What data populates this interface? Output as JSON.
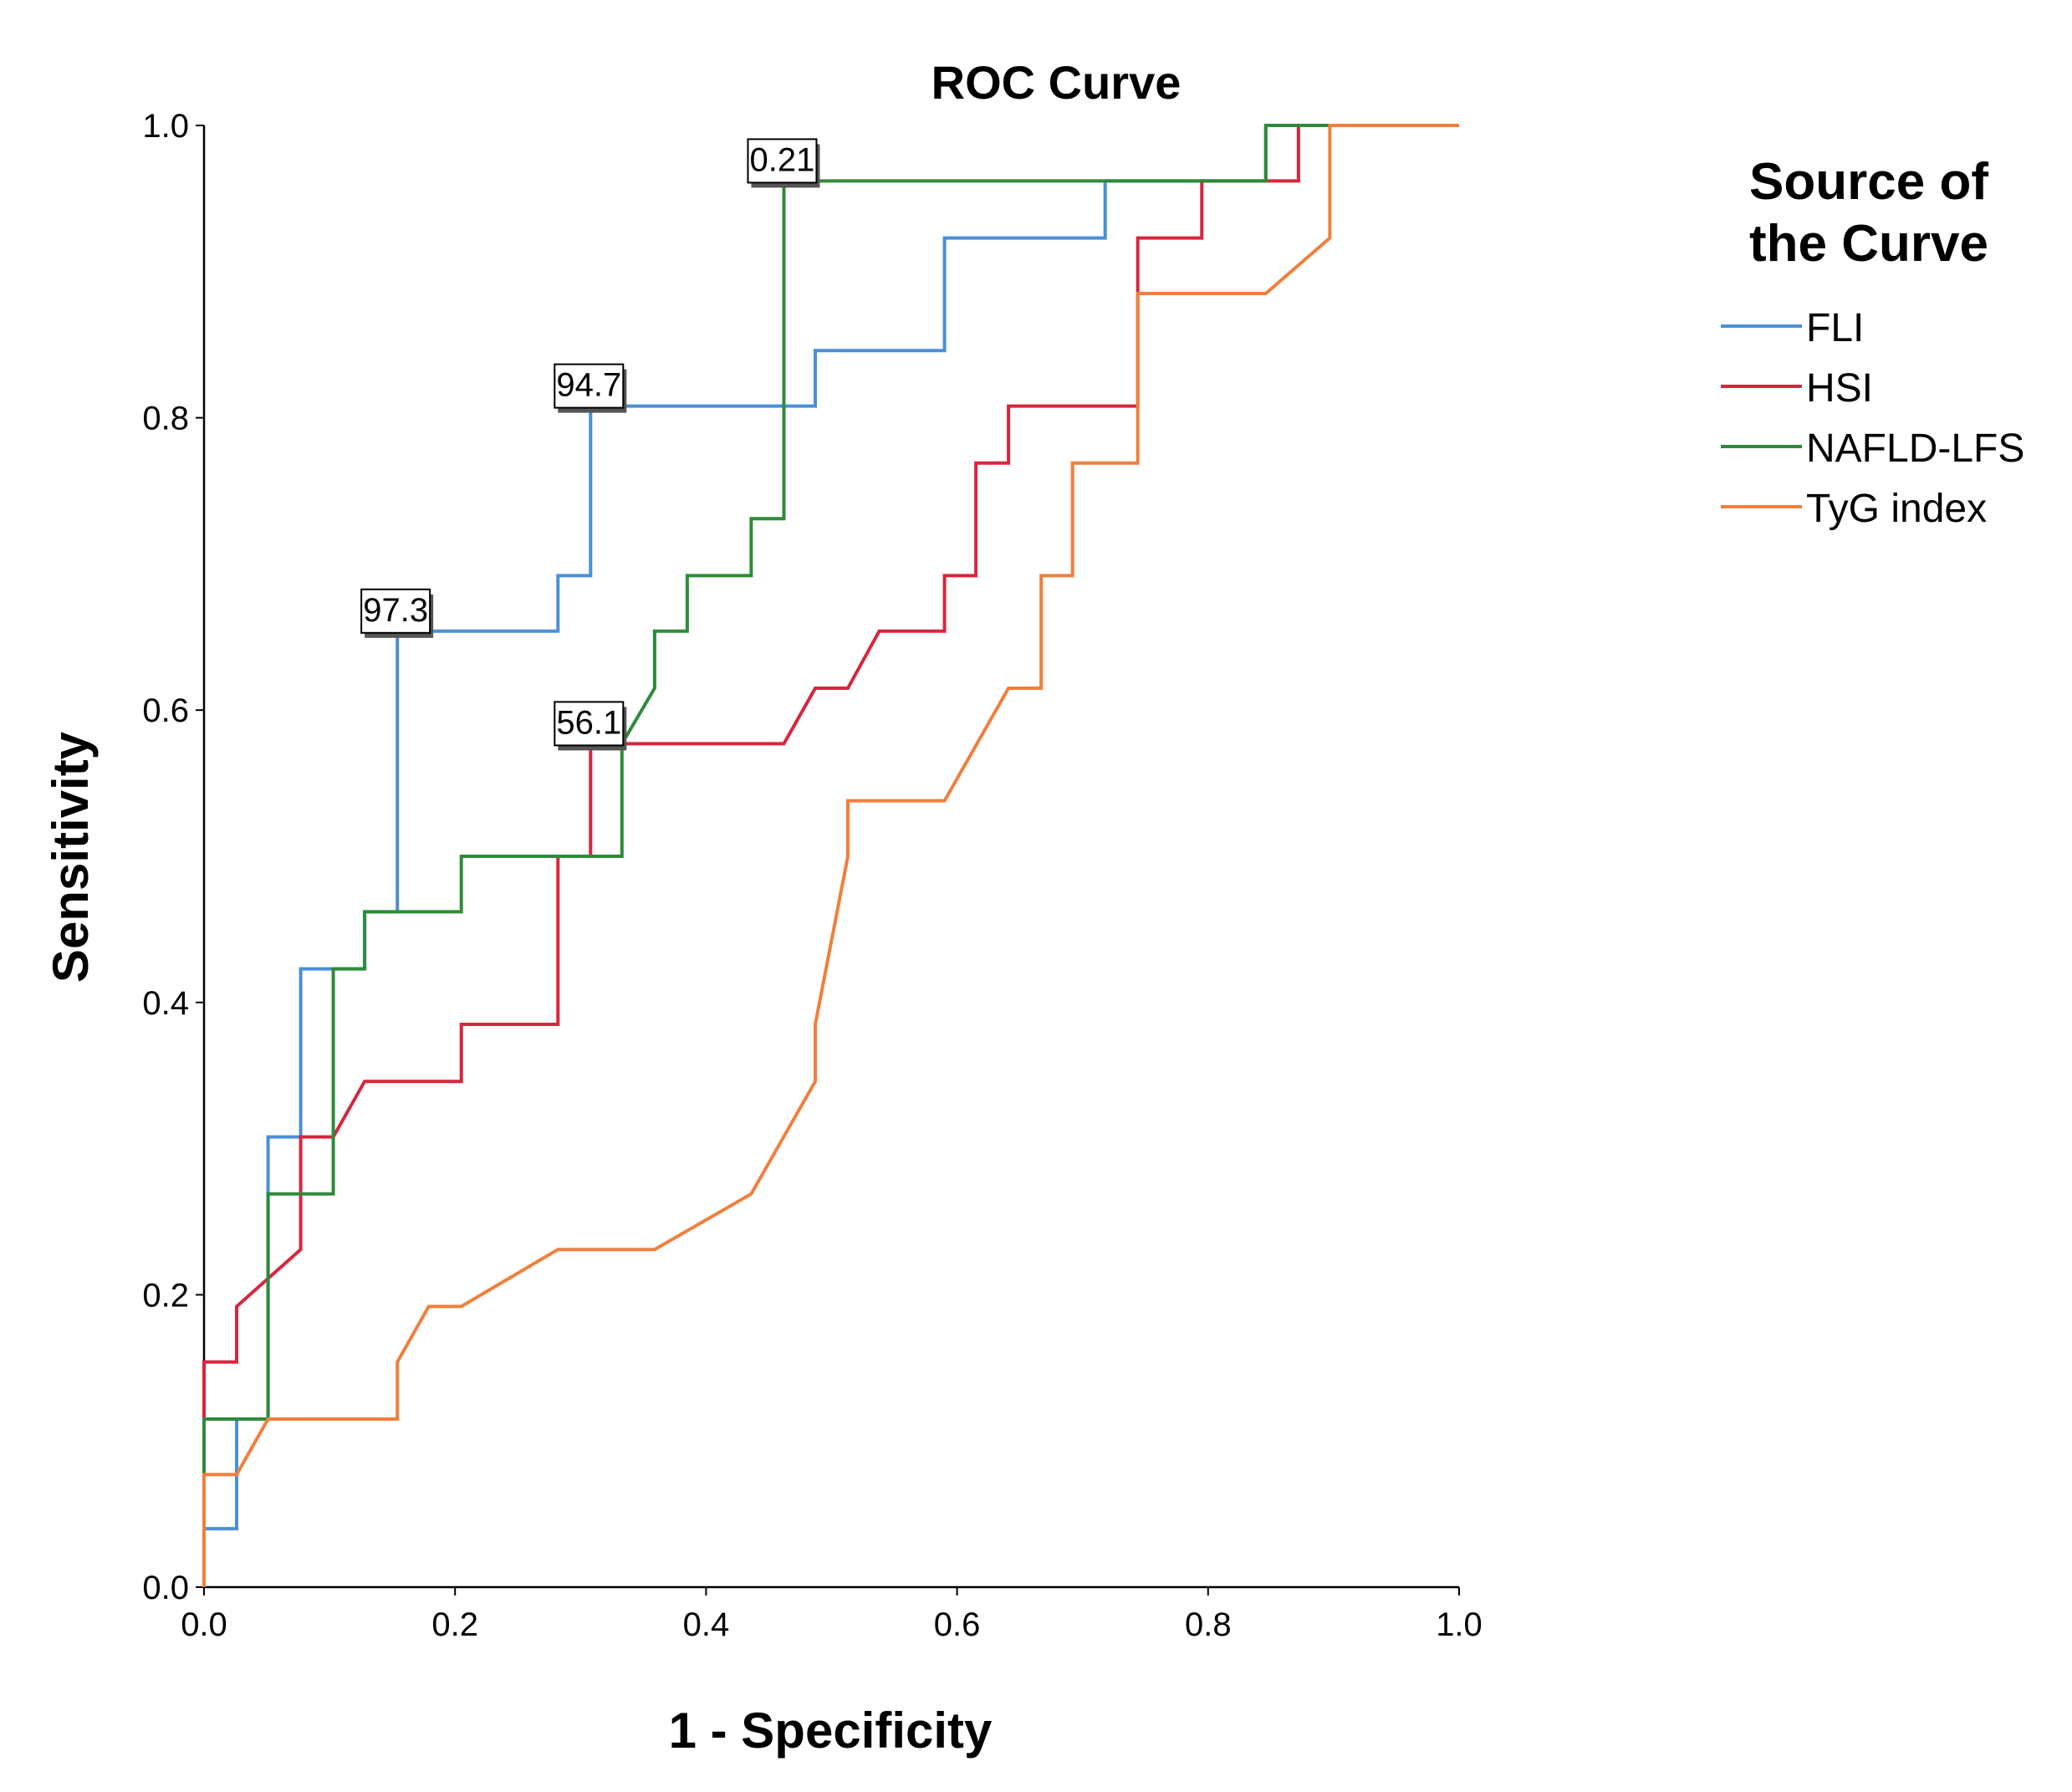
{
  "chart_data": {
    "type": "line",
    "title": "ROC Curve",
    "xlabel": "1 - Specificity",
    "ylabel": "Sensitivity",
    "xlim": [
      0,
      1
    ],
    "ylim": [
      0,
      1
    ],
    "x_ticks": [
      "0.0",
      "0.2",
      "0.4",
      "0.6",
      "0.8",
      "1.0"
    ],
    "y_ticks": [
      "0.0",
      "0.2",
      "0.4",
      "0.6",
      "0.8",
      "1.0"
    ],
    "grid": false,
    "legend_title": "Source of the Curve",
    "legend_title_lines": [
      "Source of",
      "the Curve"
    ],
    "legend_position": "right",
    "series": [
      {
        "name": "FLI",
        "color": "#4a8fd8",
        "points": [
          [
            0,
            0
          ],
          [
            0,
            0.04
          ],
          [
            0.026,
            0.04
          ],
          [
            0.026,
            0.115
          ],
          [
            0.051,
            0.115
          ],
          [
            0.051,
            0.308
          ],
          [
            0.077,
            0.308
          ],
          [
            0.077,
            0.423
          ],
          [
            0.128,
            0.423
          ],
          [
            0.128,
            0.462
          ],
          [
            0.154,
            0.462
          ],
          [
            0.154,
            0.654
          ],
          [
            0.282,
            0.654
          ],
          [
            0.282,
            0.692
          ],
          [
            0.308,
            0.692
          ],
          [
            0.308,
            0.808
          ],
          [
            0.487,
            0.808
          ],
          [
            0.487,
            0.846
          ],
          [
            0.59,
            0.846
          ],
          [
            0.59,
            0.923
          ],
          [
            0.718,
            0.923
          ],
          [
            0.718,
            0.962
          ],
          [
            0.846,
            0.962
          ],
          [
            0.846,
            1
          ],
          [
            1,
            1
          ]
        ]
      },
      {
        "name": "HSI",
        "color": "#d7263d",
        "points": [
          [
            0,
            0.115
          ],
          [
            0,
            0.154
          ],
          [
            0.026,
            0.154
          ],
          [
            0.026,
            0.192
          ],
          [
            0.077,
            0.231
          ],
          [
            0.077,
            0.308
          ],
          [
            0.103,
            0.308
          ],
          [
            0.103,
            0.308
          ],
          [
            0.128,
            0.346
          ],
          [
            0.205,
            0.346
          ],
          [
            0.205,
            0.385
          ],
          [
            0.282,
            0.385
          ],
          [
            0.282,
            0.5
          ],
          [
            0.308,
            0.5
          ],
          [
            0.308,
            0.577
          ],
          [
            0.462,
            0.577
          ],
          [
            0.487,
            0.615
          ],
          [
            0.513,
            0.615
          ],
          [
            0.538,
            0.654
          ],
          [
            0.59,
            0.654
          ],
          [
            0.59,
            0.692
          ],
          [
            0.615,
            0.692
          ],
          [
            0.615,
            0.769
          ],
          [
            0.641,
            0.769
          ],
          [
            0.641,
            0.808
          ],
          [
            0.744,
            0.808
          ],
          [
            0.744,
            0.923
          ],
          [
            0.795,
            0.923
          ],
          [
            0.795,
            0.962
          ],
          [
            0.872,
            0.962
          ],
          [
            0.872,
            1
          ],
          [
            1,
            1
          ]
        ]
      },
      {
        "name": "NAFLD-LFS",
        "color": "#2e8b3a",
        "points": [
          [
            0,
            0.077
          ],
          [
            0,
            0.115
          ],
          [
            0.051,
            0.115
          ],
          [
            0.051,
            0.269
          ],
          [
            0.103,
            0.269
          ],
          [
            0.103,
            0.423
          ],
          [
            0.128,
            0.423
          ],
          [
            0.128,
            0.462
          ],
          [
            0.205,
            0.462
          ],
          [
            0.205,
            0.5
          ],
          [
            0.333,
            0.5
          ],
          [
            0.333,
            0.577
          ],
          [
            0.359,
            0.615
          ],
          [
            0.359,
            0.654
          ],
          [
            0.385,
            0.654
          ],
          [
            0.385,
            0.692
          ],
          [
            0.436,
            0.692
          ],
          [
            0.436,
            0.731
          ],
          [
            0.462,
            0.731
          ],
          [
            0.462,
            0.962
          ],
          [
            0.846,
            0.962
          ],
          [
            0.846,
            1
          ],
          [
            1,
            1
          ]
        ]
      },
      {
        "name": "TyG index",
        "color": "#f07f3c",
        "points": [
          [
            0,
            0
          ],
          [
            0,
            0.077
          ],
          [
            0.026,
            0.077
          ],
          [
            0.051,
            0.115
          ],
          [
            0.154,
            0.115
          ],
          [
            0.154,
            0.154
          ],
          [
            0.179,
            0.192
          ],
          [
            0.205,
            0.192
          ],
          [
            0.282,
            0.231
          ],
          [
            0.359,
            0.231
          ],
          [
            0.436,
            0.269
          ],
          [
            0.487,
            0.346
          ],
          [
            0.487,
            0.385
          ],
          [
            0.513,
            0.5
          ],
          [
            0.513,
            0.538
          ],
          [
            0.59,
            0.538
          ],
          [
            0.641,
            0.615
          ],
          [
            0.667,
            0.615
          ],
          [
            0.667,
            0.692
          ],
          [
            0.692,
            0.692
          ],
          [
            0.692,
            0.769
          ],
          [
            0.744,
            0.769
          ],
          [
            0.744,
            0.885
          ],
          [
            0.846,
            0.885
          ],
          [
            0.897,
            0.923
          ],
          [
            0.897,
            1
          ],
          [
            1,
            1
          ]
        ]
      }
    ],
    "annotations": [
      {
        "text": "0.21",
        "x": 0.462,
        "y": 0.962,
        "series": "NAFLD-LFS"
      },
      {
        "text": "94.7",
        "x": 0.308,
        "y": 0.808,
        "series": "FLI"
      },
      {
        "text": "97.3",
        "x": 0.154,
        "y": 0.654,
        "series": "FLI"
      },
      {
        "text": "56.1",
        "x": 0.308,
        "y": 0.577,
        "series": "HSI"
      }
    ]
  }
}
